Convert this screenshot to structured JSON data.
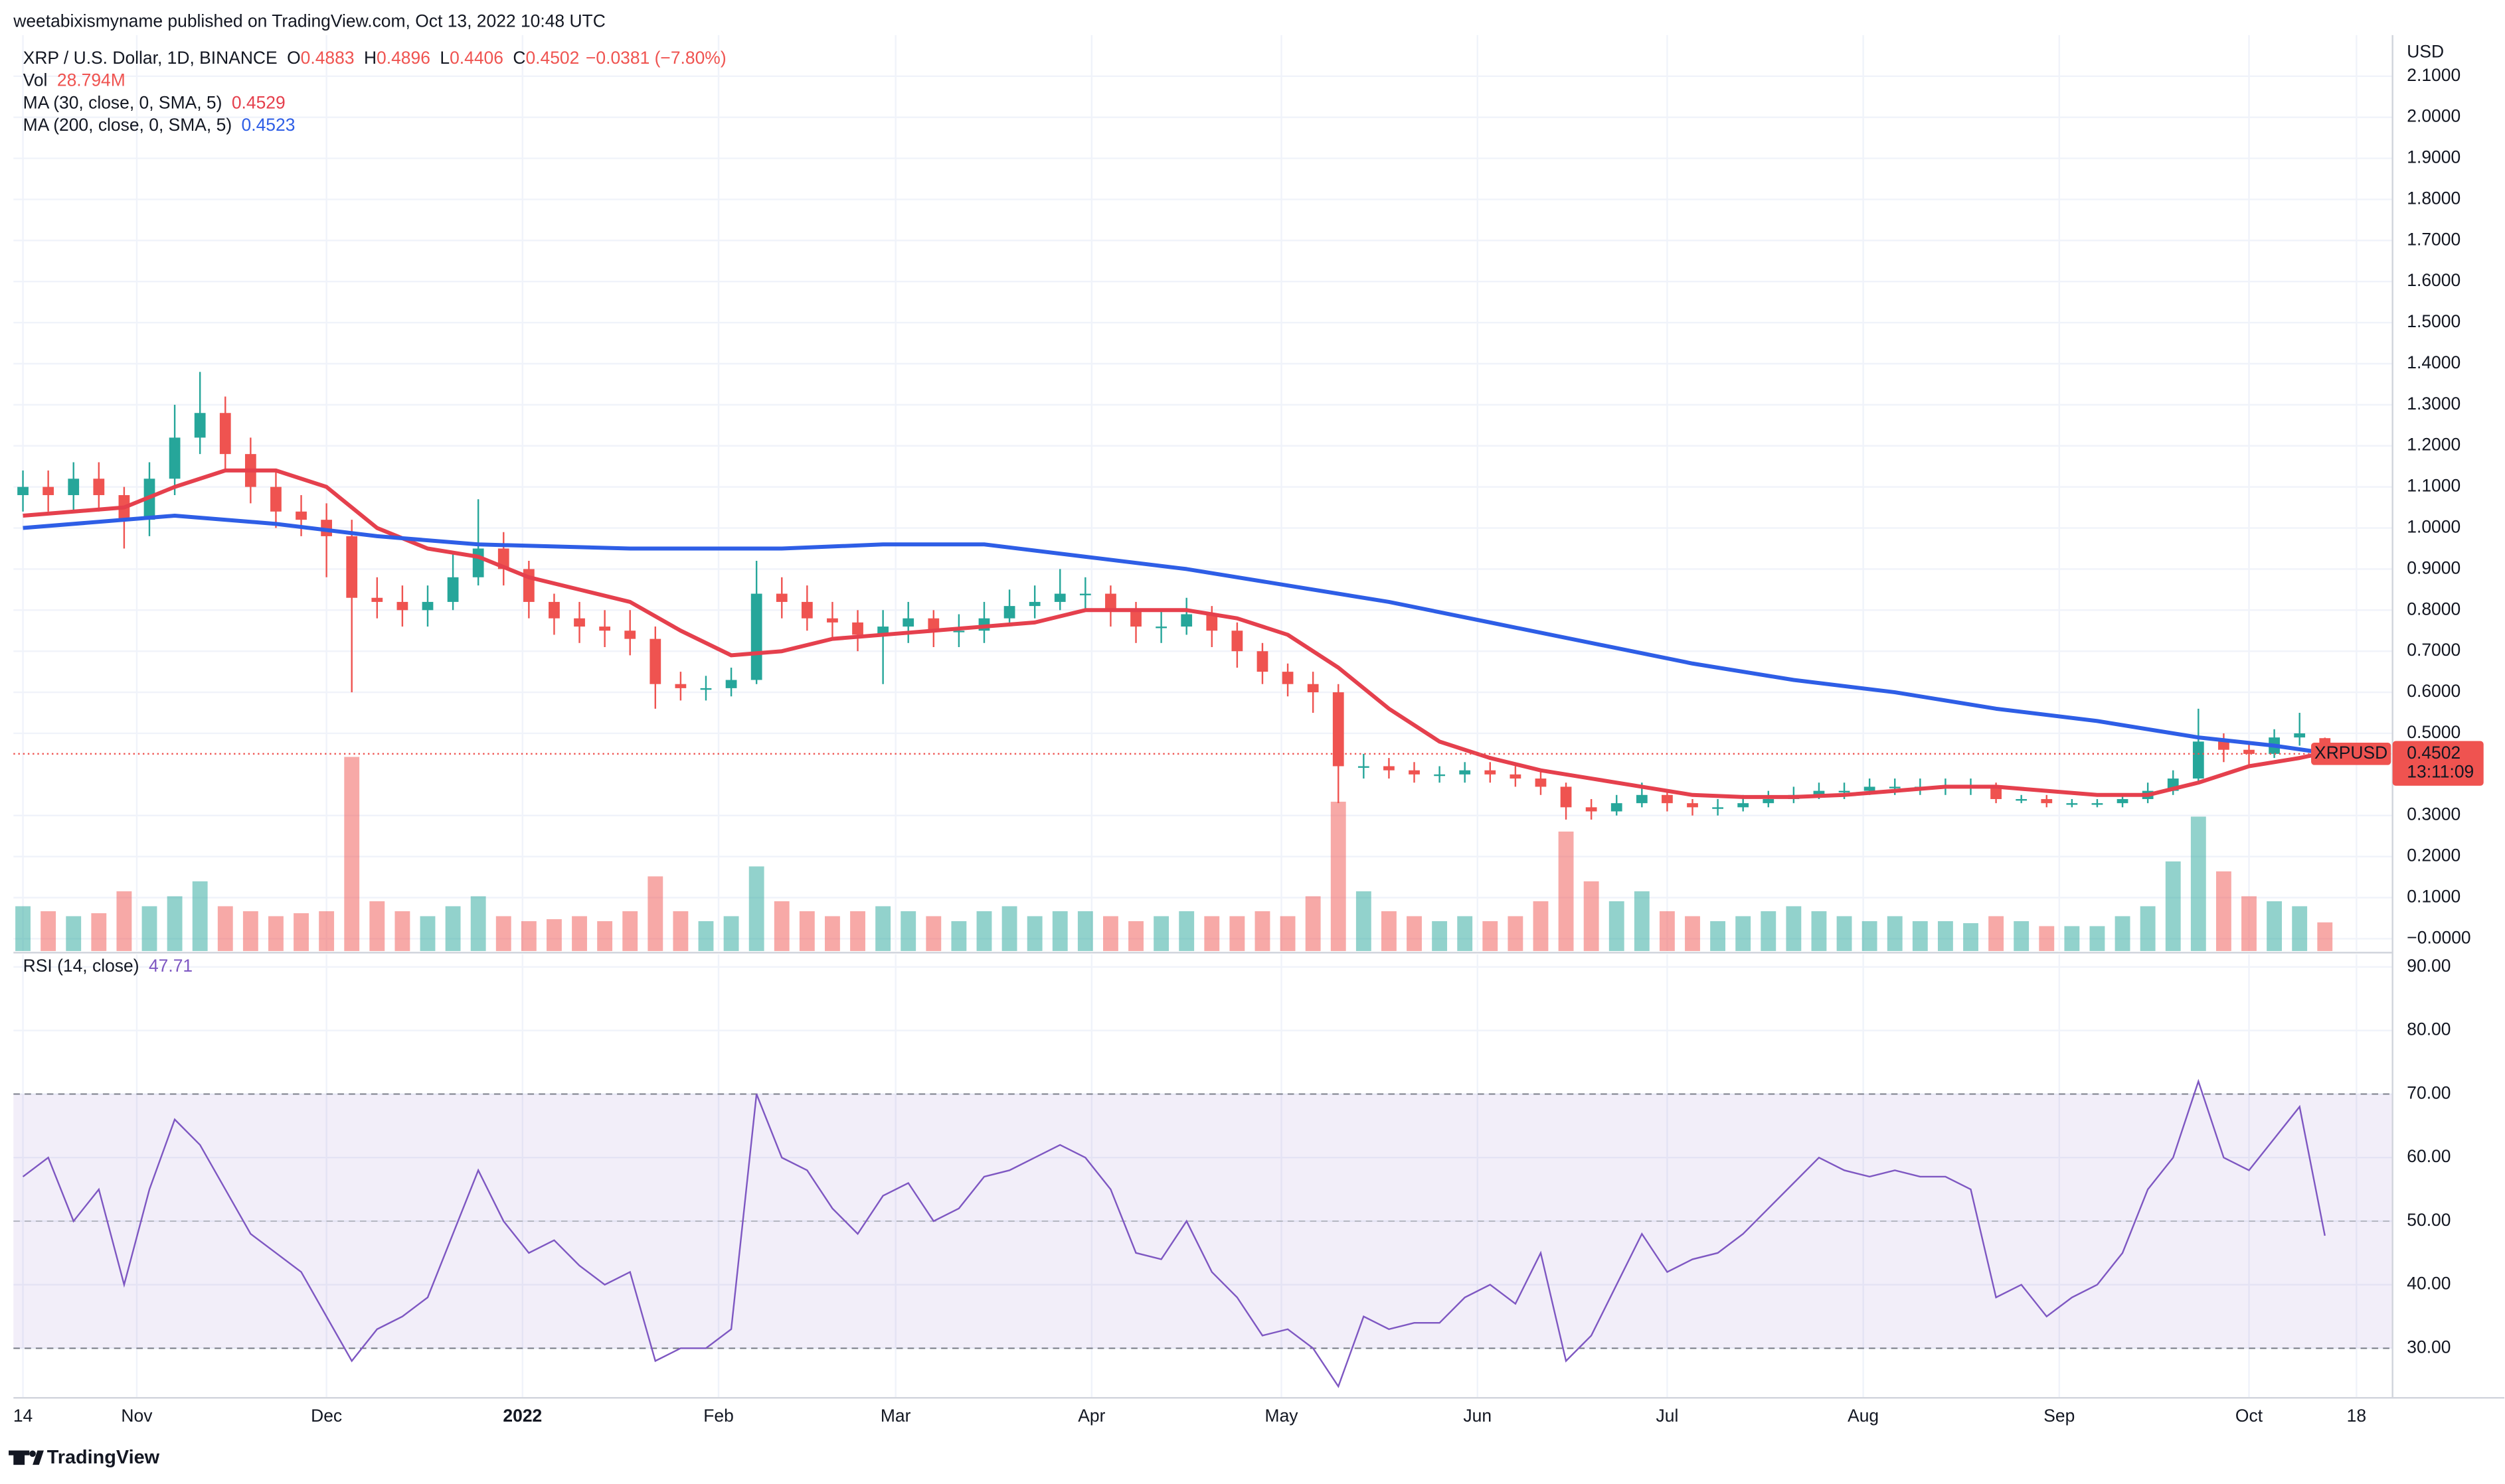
{
  "header": {
    "publisher": "weetabixismyname published on TradingView.com, Oct 13, 2022 10:48 UTC"
  },
  "footer": {
    "brand": "TradingView"
  },
  "chart_data": [
    {
      "type": "candlestick",
      "title": "XRP / U.S. Dollar, 1D, BINANCE",
      "ohlc_labels": [
        "O",
        "H",
        "L",
        "C"
      ],
      "change": "−0.0381 (−7.80%)",
      "y_unit": "USD",
      "symbol_label": "XRPUSD",
      "countdown": "13:11:09",
      "up_color": "#26a69a",
      "down_color": "#ef5350",
      "xlim": [
        -1.5,
        374.7
      ],
      "xticks": [
        {
          "value": 0,
          "label": "14"
        },
        {
          "value": 18,
          "label": "Nov"
        },
        {
          "value": 48,
          "label": "Dec"
        },
        {
          "value": 79,
          "label": "2022"
        },
        {
          "value": 110,
          "label": "Feb"
        },
        {
          "value": 138,
          "label": "Mar"
        },
        {
          "value": 169,
          "label": "Apr"
        },
        {
          "value": 199,
          "label": "May"
        },
        {
          "value": 230,
          "label": "Jun"
        },
        {
          "value": 260,
          "label": "Jul"
        },
        {
          "value": 291,
          "label": "Aug"
        },
        {
          "value": 322,
          "label": "Sep"
        },
        {
          "value": 352,
          "label": "Oct"
        },
        {
          "value": 369,
          "label": "18"
        }
      ],
      "ylim": [
        -0.03,
        2.2
      ],
      "yticks": [
        {
          "value": 2.1,
          "label": "2.1000"
        },
        {
          "value": 2.0,
          "label": "2.0000"
        },
        {
          "value": 1.9,
          "label": "1.9000"
        },
        {
          "value": 1.8,
          "label": "1.8000"
        },
        {
          "value": 1.7,
          "label": "1.7000"
        },
        {
          "value": 1.6,
          "label": "1.6000"
        },
        {
          "value": 1.5,
          "label": "1.5000"
        },
        {
          "value": 1.4,
          "label": "1.4000"
        },
        {
          "value": 1.3,
          "label": "1.3000"
        },
        {
          "value": 1.2,
          "label": "1.2000"
        },
        {
          "value": 1.1,
          "label": "1.1000"
        },
        {
          "value": 1.0,
          "label": "1.0000"
        },
        {
          "value": 0.9,
          "label": "0.9000"
        },
        {
          "value": 0.8,
          "label": "0.8000"
        },
        {
          "value": 0.7,
          "label": "0.7000"
        },
        {
          "value": 0.6,
          "label": "0.6000"
        },
        {
          "value": 0.5,
          "label": "0.5000"
        },
        {
          "value": 0.3,
          "label": "0.3000"
        },
        {
          "value": 0.2,
          "label": "0.2000"
        },
        {
          "value": 0.1,
          "label": "0.1000"
        },
        {
          "value": 0,
          "label": "−0.0000"
        }
      ],
      "grid": true,
      "x": [
        0,
        4,
        8,
        12,
        16,
        20,
        24,
        28,
        32,
        36,
        40,
        44,
        48,
        52,
        56,
        60,
        64,
        68,
        72,
        76,
        80,
        84,
        88,
        92,
        96,
        100,
        104,
        108,
        112,
        116,
        120,
        124,
        128,
        132,
        136,
        140,
        144,
        148,
        152,
        156,
        160,
        164,
        168,
        172,
        176,
        180,
        184,
        188,
        192,
        196,
        200,
        204,
        208,
        212,
        216,
        220,
        224,
        228,
        232,
        236,
        240,
        244,
        248,
        252,
        256,
        260,
        264,
        268,
        272,
        276,
        280,
        284,
        288,
        292,
        296,
        300,
        304,
        308,
        312,
        316,
        320,
        324,
        328,
        332,
        336,
        340,
        344,
        348,
        352,
        356,
        360,
        364
      ],
      "open": [
        1.08,
        1.1,
        1.08,
        1.12,
        1.08,
        1.02,
        1.12,
        1.22,
        1.28,
        1.18,
        1.1,
        1.04,
        1.02,
        0.98,
        0.83,
        0.82,
        0.8,
        0.82,
        0.88,
        0.95,
        0.9,
        0.82,
        0.78,
        0.76,
        0.75,
        0.73,
        0.62,
        0.61,
        0.61,
        0.63,
        0.84,
        0.82,
        0.78,
        0.77,
        0.74,
        0.76,
        0.78,
        0.75,
        0.75,
        0.78,
        0.81,
        0.82,
        0.84,
        0.84,
        0.8,
        0.76,
        0.76,
        0.79,
        0.75,
        0.7,
        0.65,
        0.62,
        0.6,
        0.42,
        0.42,
        0.41,
        0.4,
        0.4,
        0.41,
        0.4,
        0.39,
        0.37,
        0.32,
        0.31,
        0.33,
        0.35,
        0.33,
        0.32,
        0.32,
        0.33,
        0.34,
        0.35,
        0.36,
        0.36,
        0.37,
        0.37,
        0.37,
        0.37,
        0.37,
        0.34,
        0.34,
        0.33,
        0.33,
        0.33,
        0.34,
        0.36,
        0.39,
        0.48,
        0.46,
        0.45,
        0.49,
        0.4883
      ],
      "high": [
        1.14,
        1.14,
        1.16,
        1.16,
        1.1,
        1.16,
        1.3,
        1.38,
        1.32,
        1.22,
        1.14,
        1.08,
        1.06,
        1.02,
        0.88,
        0.86,
        0.86,
        0.94,
        1.07,
        0.99,
        0.92,
        0.84,
        0.82,
        0.8,
        0.8,
        0.76,
        0.65,
        0.64,
        0.66,
        0.92,
        0.88,
        0.86,
        0.82,
        0.8,
        0.8,
        0.82,
        0.8,
        0.79,
        0.82,
        0.85,
        0.86,
        0.9,
        0.88,
        0.86,
        0.82,
        0.8,
        0.83,
        0.81,
        0.77,
        0.72,
        0.67,
        0.65,
        0.62,
        0.45,
        0.44,
        0.43,
        0.42,
        0.43,
        0.43,
        0.42,
        0.41,
        0.38,
        0.34,
        0.35,
        0.38,
        0.36,
        0.34,
        0.34,
        0.35,
        0.36,
        0.37,
        0.38,
        0.38,
        0.39,
        0.39,
        0.39,
        0.39,
        0.39,
        0.38,
        0.35,
        0.35,
        0.34,
        0.34,
        0.35,
        0.38,
        0.41,
        0.56,
        0.5,
        0.48,
        0.51,
        0.55,
        0.4896
      ],
      "low": [
        1.04,
        1.04,
        1.04,
        1.04,
        0.95,
        0.98,
        1.08,
        1.18,
        1.14,
        1.06,
        1.0,
        0.98,
        0.88,
        0.6,
        0.78,
        0.76,
        0.76,
        0.8,
        0.86,
        0.86,
        0.78,
        0.74,
        0.72,
        0.71,
        0.69,
        0.56,
        0.58,
        0.58,
        0.59,
        0.62,
        0.78,
        0.75,
        0.73,
        0.7,
        0.62,
        0.72,
        0.71,
        0.71,
        0.72,
        0.77,
        0.78,
        0.8,
        0.8,
        0.76,
        0.72,
        0.72,
        0.74,
        0.71,
        0.66,
        0.62,
        0.59,
        0.55,
        0.33,
        0.39,
        0.39,
        0.38,
        0.38,
        0.38,
        0.38,
        0.37,
        0.35,
        0.29,
        0.29,
        0.3,
        0.32,
        0.31,
        0.3,
        0.3,
        0.31,
        0.32,
        0.33,
        0.34,
        0.34,
        0.35,
        0.35,
        0.35,
        0.35,
        0.35,
        0.33,
        0.33,
        0.32,
        0.32,
        0.32,
        0.32,
        0.33,
        0.35,
        0.38,
        0.43,
        0.42,
        0.44,
        0.47,
        0.4406
      ],
      "close": [
        1.1,
        1.08,
        1.12,
        1.08,
        1.02,
        1.12,
        1.22,
        1.28,
        1.18,
        1.1,
        1.04,
        1.02,
        0.98,
        0.83,
        0.82,
        0.8,
        0.82,
        0.88,
        0.95,
        0.9,
        0.82,
        0.78,
        0.76,
        0.75,
        0.73,
        0.62,
        0.61,
        0.61,
        0.63,
        0.84,
        0.82,
        0.78,
        0.77,
        0.74,
        0.76,
        0.78,
        0.75,
        0.75,
        0.78,
        0.81,
        0.82,
        0.84,
        0.84,
        0.8,
        0.76,
        0.76,
        0.79,
        0.75,
        0.7,
        0.65,
        0.62,
        0.6,
        0.42,
        0.42,
        0.41,
        0.4,
        0.4,
        0.41,
        0.4,
        0.39,
        0.37,
        0.32,
        0.31,
        0.33,
        0.35,
        0.33,
        0.32,
        0.32,
        0.33,
        0.34,
        0.35,
        0.36,
        0.36,
        0.37,
        0.37,
        0.37,
        0.37,
        0.37,
        0.34,
        0.34,
        0.33,
        0.33,
        0.33,
        0.34,
        0.36,
        0.39,
        0.48,
        0.46,
        0.45,
        0.49,
        0.5,
        0.4502
      ],
      "volume": {
        "name": "Vol",
        "ylim": [
          0,
          920
        ],
        "values": [
          45,
          40,
          35,
          38,
          60,
          45,
          55,
          70,
          45,
          40,
          35,
          38,
          40,
          195,
          50,
          40,
          35,
          45,
          55,
          35,
          30,
          32,
          35,
          30,
          40,
          75,
          40,
          30,
          35,
          85,
          50,
          40,
          35,
          40,
          45,
          40,
          35,
          30,
          40,
          45,
          35,
          40,
          40,
          35,
          30,
          35,
          40,
          35,
          35,
          40,
          35,
          55,
          150,
          60,
          40,
          35,
          30,
          35,
          30,
          35,
          50,
          120,
          70,
          50,
          60,
          40,
          35,
          30,
          35,
          40,
          45,
          40,
          35,
          30,
          35,
          30,
          30,
          28,
          35,
          30,
          25,
          25,
          25,
          35,
          45,
          90,
          135,
          80,
          55,
          50,
          45,
          28.794
        ],
        "last_value_label": "28.794M"
      },
      "overlays": [
        {
          "name": "MA (30, close, 0, SMA, 5)",
          "color": "#e5404d",
          "x": [
            0,
            16,
            24,
            32,
            40,
            48,
            56,
            64,
            72,
            80,
            88,
            96,
            104,
            112,
            120,
            128,
            136,
            144,
            152,
            160,
            168,
            176,
            184,
            192,
            200,
            208,
            216,
            224,
            232,
            240,
            248,
            256,
            264,
            272,
            280,
            288,
            296,
            304,
            312,
            320,
            328,
            336,
            344,
            352,
            360,
            364
          ],
          "values": [
            1.03,
            1.05,
            1.1,
            1.14,
            1.14,
            1.1,
            1.0,
            0.95,
            0.93,
            0.88,
            0.85,
            0.82,
            0.75,
            0.69,
            0.7,
            0.73,
            0.74,
            0.75,
            0.76,
            0.77,
            0.8,
            0.8,
            0.8,
            0.78,
            0.74,
            0.66,
            0.56,
            0.48,
            0.44,
            0.41,
            0.39,
            0.37,
            0.35,
            0.345,
            0.345,
            0.35,
            0.36,
            0.37,
            0.37,
            0.36,
            0.35,
            0.35,
            0.38,
            0.42,
            0.44,
            0.4529
          ]
        },
        {
          "name": "MA (200, close, 0, SMA, 5)",
          "color": "#2e5ee6",
          "x": [
            0,
            16,
            24,
            40,
            56,
            72,
            96,
            120,
            136,
            152,
            168,
            184,
            200,
            216,
            232,
            248,
            264,
            280,
            296,
            312,
            328,
            344,
            356,
            364
          ],
          "values": [
            1.0,
            1.02,
            1.03,
            1.01,
            0.98,
            0.96,
            0.95,
            0.95,
            0.96,
            0.96,
            0.93,
            0.9,
            0.86,
            0.82,
            0.77,
            0.72,
            0.67,
            0.63,
            0.6,
            0.56,
            0.53,
            0.49,
            0.47,
            0.4523
          ]
        }
      ]
    },
    {
      "type": "line",
      "name": "RSI (14, close)",
      "color": "#7e57c2",
      "ylim": [
        22.2,
        92
      ],
      "yticks": [
        {
          "value": 90,
          "label": "90.00"
        },
        {
          "value": 80,
          "label": "80.00"
        },
        {
          "value": 70,
          "label": "70.00"
        },
        {
          "value": 60,
          "label": "60.00"
        },
        {
          "value": 50,
          "label": "50.00"
        },
        {
          "value": 40,
          "label": "40.00"
        },
        {
          "value": 30,
          "label": "30.00"
        }
      ],
      "levels": [
        70,
        50,
        30
      ],
      "values": [
        57,
        60,
        50,
        55,
        40,
        55,
        66,
        62,
        55,
        48,
        45,
        42,
        35,
        28,
        33,
        35,
        38,
        48,
        58,
        50,
        45,
        47,
        43,
        40,
        42,
        28,
        30,
        30,
        33,
        70,
        60,
        58,
        52,
        48,
        54,
        56,
        50,
        52,
        57,
        58,
        60,
        62,
        60,
        55,
        45,
        44,
        50,
        42,
        38,
        32,
        33,
        30,
        24,
        35,
        33,
        34,
        34,
        38,
        40,
        37,
        45,
        28,
        32,
        40,
        48,
        42,
        44,
        45,
        48,
        52,
        56,
        60,
        58,
        57,
        58,
        57,
        57,
        55,
        38,
        40,
        35,
        38,
        40,
        45,
        55,
        60,
        72,
        60,
        58,
        63,
        68,
        47.71
      ]
    }
  ]
}
